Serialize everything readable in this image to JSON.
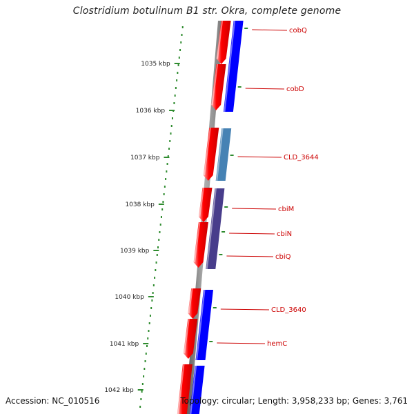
{
  "title": "Clostridium botulinum B1 str. Okra, complete genome",
  "footer": {
    "accession": "Accession: NC_010516",
    "topology": "Topology: circular; Length: 3,958,233 bp; Genes: 3,761"
  },
  "scale": {
    "unit": "kbp",
    "ticks": [
      "1035 kbp",
      "1036 kbp",
      "1037 kbp",
      "1038 kbp",
      "1039 kbp",
      "1040 kbp",
      "1041 kbp",
      "1042 kbp"
    ]
  },
  "colors": {
    "forward_cds": "#ff0000",
    "reverse_cds": "#0000ff",
    "gene_label": "#cc0000",
    "tick": "#2e8b2e",
    "backbone": "#808080"
  },
  "genes": [
    {
      "name": "cobQ",
      "color": "#0000ff"
    },
    {
      "name": "cobD",
      "color": "#0000ff"
    },
    {
      "name": "CLD_3644",
      "color": "#4682b4"
    },
    {
      "name": "cbiM",
      "color": "#483d8b"
    },
    {
      "name": "cbiN",
      "color": "#483d8b"
    },
    {
      "name": "cbiQ",
      "color": "#483d8b"
    },
    {
      "name": "CLD_3640",
      "color": "#0000ff"
    },
    {
      "name": "hemC",
      "color": "#0000ff"
    }
  ]
}
